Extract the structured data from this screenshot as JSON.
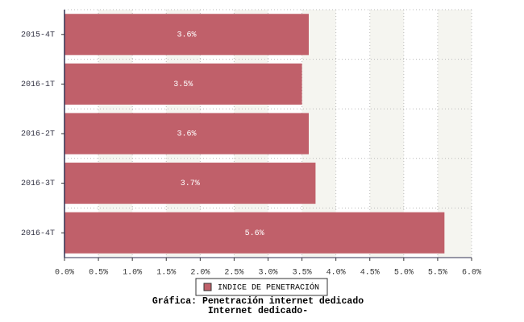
{
  "chart_data": {
    "type": "hbar",
    "title": "Gráfica: Penetración internet dedicado",
    "subtitle": "Internet dedicado-",
    "categories": [
      "2015-4T",
      "2016-1T",
      "2016-2T",
      "2016-3T",
      "2016-4T"
    ],
    "series": [
      {
        "name": "INDICE DE PENETRACIÓN",
        "color": "#c0606a",
        "values": [
          3.6,
          3.5,
          3.6,
          3.7,
          5.6
        ],
        "value_labels": [
          "3.6%",
          "3.5%",
          "3.6%",
          "3.7%",
          "5.6%"
        ]
      }
    ],
    "xlim": [
      0,
      6
    ],
    "xticks": [
      {
        "value": 0,
        "label": "0.0%"
      },
      {
        "value": 0.5,
        "label": "0.5%"
      },
      {
        "value": 1,
        "label": "1.0%"
      },
      {
        "value": 1.5,
        "label": "1.5%"
      },
      {
        "value": 2,
        "label": "2.0%"
      },
      {
        "value": 2.5,
        "label": "2.5%"
      },
      {
        "value": 3,
        "label": "3.0%"
      },
      {
        "value": 3.5,
        "label": "3.5%"
      },
      {
        "value": 4,
        "label": "4.0%"
      },
      {
        "value": 4.5,
        "label": "4.5%"
      },
      {
        "value": 5,
        "label": "5.0%"
      },
      {
        "value": 5.5,
        "label": "5.5%"
      },
      {
        "value": 6,
        "label": "6.0%"
      }
    ],
    "grid": true
  }
}
